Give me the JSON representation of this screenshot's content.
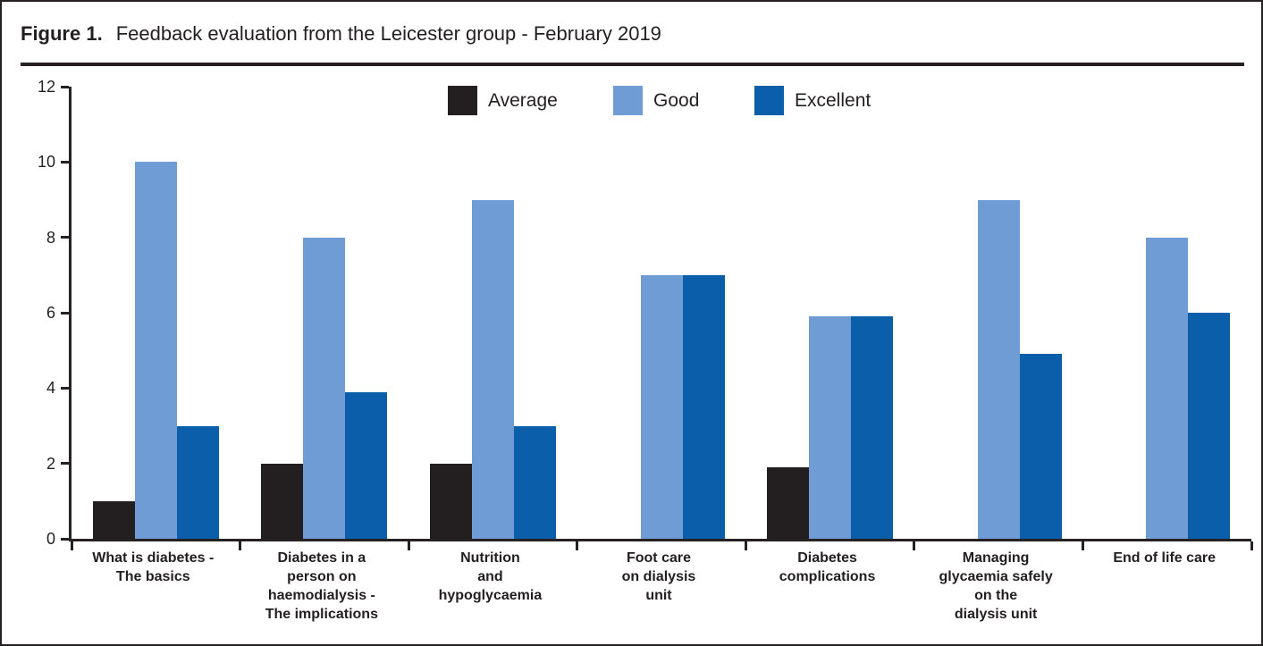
{
  "header": {
    "figure_label": "Figure 1.",
    "title": "Feedback evaluation from the Leicester group - February 2019"
  },
  "colors": {
    "ink": "#262223",
    "average": "#231f20",
    "good": "#6f9cd4",
    "excellent": "#0b5ea9"
  },
  "chart_data": {
    "type": "bar",
    "title": "Feedback evaluation from the Leicester group - February 2019",
    "categories": [
      [
        "What is diabetes -",
        "The basics"
      ],
      [
        "Diabetes in a",
        "person on",
        "haemodialysis -",
        "The implications"
      ],
      [
        "Nutrition",
        "and",
        "hypoglycaemia"
      ],
      [
        "Foot care",
        "on dialysis",
        "unit"
      ],
      [
        "Diabetes",
        "complications"
      ],
      [
        "Managing",
        "glycaemia safely",
        "on the",
        "dialysis unit"
      ],
      [
        "End of life care"
      ]
    ],
    "series": [
      {
        "name": "Average",
        "color": "#231f20",
        "values": [
          1,
          2,
          2,
          0,
          1.9,
          0,
          0
        ]
      },
      {
        "name": "Good",
        "color": "#6f9cd4",
        "values": [
          10,
          8,
          9,
          7,
          5.9,
          9,
          8
        ]
      },
      {
        "name": "Excellent",
        "color": "#0b5ea9",
        "values": [
          3,
          3.9,
          3,
          7,
          5.9,
          4.9,
          6
        ]
      }
    ],
    "xlabel": "",
    "ylabel": "",
    "ylim": [
      0,
      12
    ],
    "yticks": [
      0,
      2,
      4,
      6,
      8,
      10,
      12
    ],
    "grid": false,
    "legend_position": "top-center",
    "legend": [
      "Average",
      "Good",
      "Excellent"
    ]
  }
}
